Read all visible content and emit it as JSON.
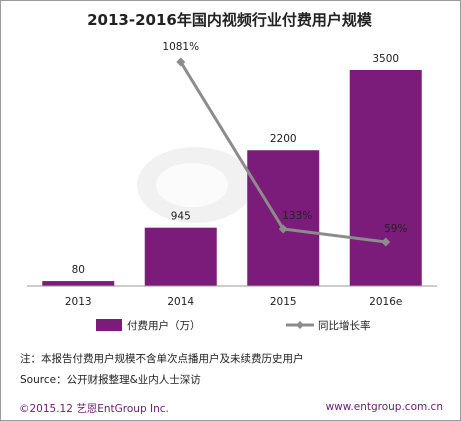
{
  "chart_data": {
    "type": "bar",
    "title": "2013-2016年国内视频行业付费用户规模",
    "categories": [
      "2013",
      "2014",
      "2015",
      "2016e"
    ],
    "series": [
      {
        "name": "付费用户（万）",
        "type": "bar",
        "color": "#7b1c7a",
        "values": [
          80,
          945,
          2200,
          3500
        ],
        "labels": [
          "80",
          "945",
          "2200",
          "3500"
        ]
      },
      {
        "name": "同比增长率",
        "type": "line",
        "color": "#8c8c8c",
        "x": [
          "2014",
          "2015",
          "2016e"
        ],
        "values": [
          1081,
          133,
          59
        ],
        "labels": [
          "1081%",
          "133%",
          "59%"
        ]
      }
    ],
    "legend": "bottom"
  },
  "note": "注：本报告付费用户规模不含单次点播用户及未续费历史用户",
  "source": "Source：公开财报整理&业内人士深访",
  "footer": {
    "left": "©2015.12 艺恩EntGroup Inc.",
    "right": "www.entgroup.com.cn"
  }
}
